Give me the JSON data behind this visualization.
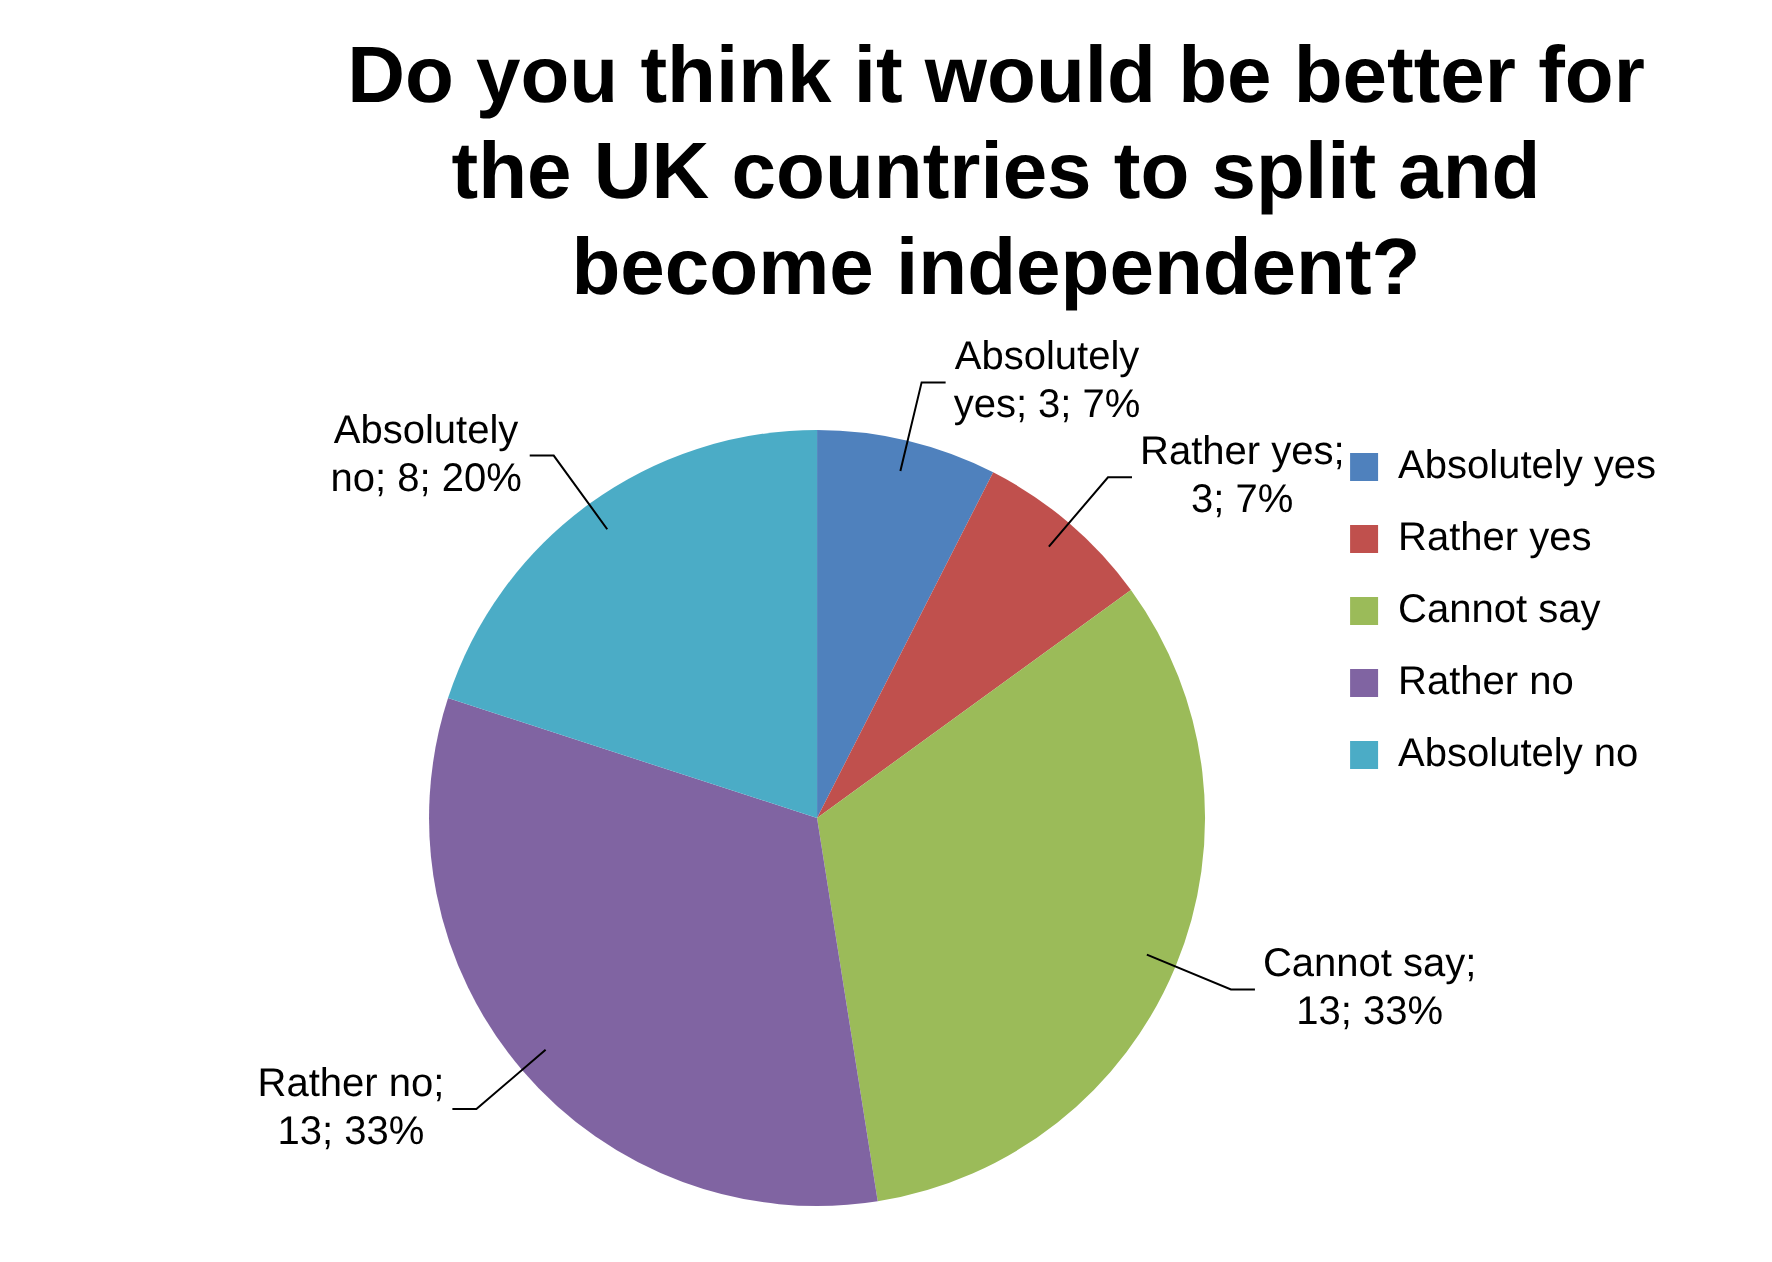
{
  "chart_data": {
    "type": "pie",
    "title": "Do you think it would be better for the UK countries to split and become independent?",
    "categories": [
      "Absolutely yes",
      "Rather yes",
      "Cannot say",
      "Rather no",
      "Absolutely no"
    ],
    "values": [
      3,
      3,
      13,
      13,
      8
    ],
    "colors": [
      "#4f81bd",
      "#c0504d",
      "#9bbb59",
      "#8064a2",
      "#4bacc6"
    ],
    "value_labels": [
      "Absolutely yes; 3; 7%",
      "Rather yes; 3; 7%",
      "Cannot say; 13; 33%",
      "Rather no; 13; 33%",
      "Absolutely no; 8; 20%"
    ],
    "legend": "right"
  }
}
